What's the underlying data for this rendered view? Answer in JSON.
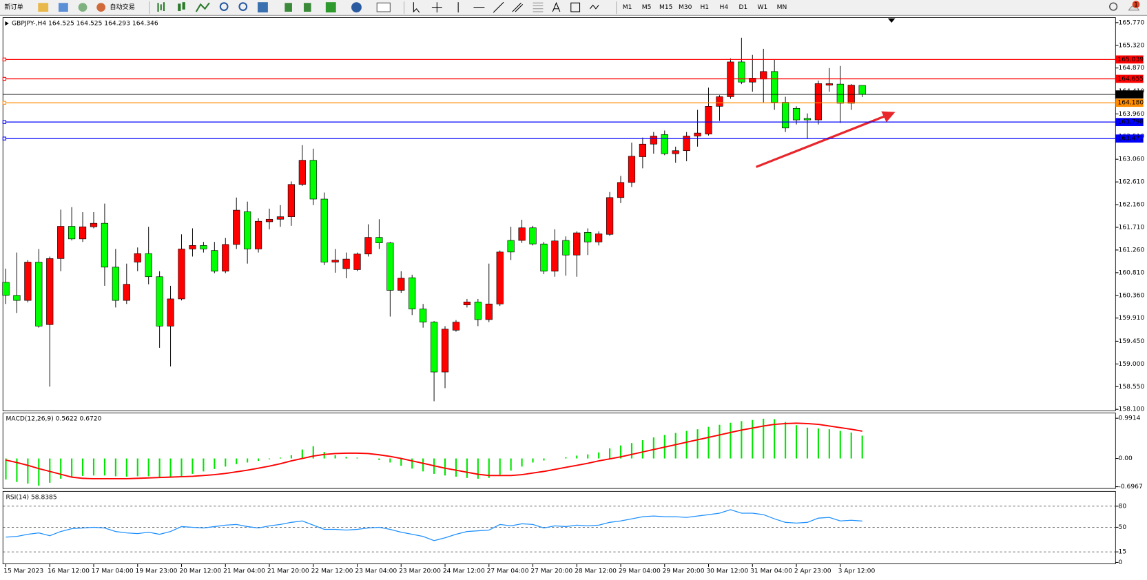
{
  "toolbar": {
    "buttons": [
      "新订单",
      "自动交易"
    ],
    "timeframes": [
      "M1",
      "M5",
      "M15",
      "M30",
      "H1",
      "H4",
      "D1",
      "W1",
      "MN"
    ],
    "notification_count": 1
  },
  "chart_data": [
    {
      "type": "candlestick",
      "title": "GBPJPY-,H4  164.525 164.525 164.293 164.346",
      "x": [
        "15 Mar 2023",
        null,
        null,
        null,
        "16 Mar 12:00",
        null,
        null,
        null,
        "17 Mar 04:00",
        null,
        null,
        null,
        "19 Mar 23:00",
        null,
        null,
        null,
        "20 Mar 12:00",
        null,
        null,
        null,
        "21 Mar 04:00",
        null,
        null,
        null,
        "21 Mar 20:00",
        null,
        null,
        null,
        "22 Mar 12:00",
        null,
        null,
        null,
        "23 Mar 04:00",
        null,
        null,
        null,
        "23 Mar 20:00",
        null,
        null,
        null,
        "24 Mar 12:00",
        null,
        null,
        null,
        "27 Mar 04:00",
        null,
        null,
        null,
        "27 Mar 20:00",
        null,
        null,
        null,
        "28 Mar 12:00",
        null,
        null,
        null,
        "29 Mar 04:00",
        null,
        null,
        null,
        "29 Mar 20:00",
        null,
        null,
        null,
        "30 Mar 12:00",
        null,
        null,
        null,
        "31 Mar 04:00",
        null,
        null,
        null,
        "2 Apr 23:00",
        null,
        null,
        null,
        "3 Apr 12:00",
        null,
        null
      ],
      "open": [
        160.62,
        160.36,
        160.26,
        161.02,
        159.78,
        161.09,
        161.73,
        161.48,
        161.72,
        161.79,
        160.92,
        160.26,
        161.02,
        161.19,
        160.73,
        159.75,
        160.29,
        161.28,
        161.35,
        161.25,
        160.84,
        161.37,
        162.02,
        161.28,
        161.82,
        161.87,
        161.92,
        162.56,
        163.04,
        162.27,
        161.02,
        160.89,
        160.87,
        161.18,
        161.51,
        161.4,
        160.46,
        160.71,
        160.09,
        159.83,
        158.84,
        159.67,
        160.17,
        160.23,
        159.88,
        160.19,
        161.45,
        161.45,
        161.7,
        161.38,
        160.84,
        161.45,
        161.16,
        161.61,
        161.42,
        161.57,
        162.3,
        162.6,
        163.11,
        163.36,
        163.55,
        163.17,
        163.23,
        163.52,
        163.56,
        164.11,
        164.3,
        164.99,
        164.59,
        164.65,
        164.8,
        164.19,
        164.07,
        163.87,
        163.84,
        164.53,
        164.55,
        164.17,
        164.525
      ],
      "high": [
        160.89,
        161.21,
        161.06,
        161.28,
        161.13,
        162.06,
        162.11,
        162.01,
        162.01,
        162.18,
        161.28,
        160.99,
        161.31,
        161.72,
        160.84,
        160.55,
        161.57,
        161.69,
        161.42,
        161.42,
        161.5,
        162.3,
        162.22,
        161.89,
        162.08,
        162.15,
        162.62,
        163.34,
        163.27,
        162.4,
        161.28,
        161.21,
        161.21,
        161.77,
        161.87,
        161.42,
        160.84,
        160.77,
        160.19,
        159.85,
        159.75,
        159.87,
        160.29,
        160.29,
        160.99,
        161.25,
        161.72,
        161.86,
        161.74,
        161.42,
        161.67,
        161.53,
        161.63,
        161.69,
        161.63,
        162.41,
        162.73,
        163.39,
        163.49,
        163.6,
        163.63,
        163.31,
        163.6,
        164.04,
        164.48,
        164.33,
        165.06,
        165.47,
        165.13,
        165.25,
        165.03,
        164.3,
        164.11,
        163.97,
        164.62,
        164.87,
        164.91,
        164.55,
        164.525
      ],
      "low": [
        160.19,
        160.01,
        160.22,
        159.72,
        158.55,
        160.84,
        161.45,
        161.42,
        161.69,
        160.55,
        160.12,
        160.19,
        160.84,
        160.58,
        159.32,
        158.95,
        160.26,
        161.13,
        161.21,
        160.8,
        160.8,
        161.28,
        160.99,
        161.21,
        161.67,
        161.72,
        161.74,
        162.53,
        162.15,
        160.96,
        160.81,
        160.7,
        160.84,
        161.13,
        161.28,
        159.94,
        160.41,
        159.97,
        159.72,
        158.26,
        158.52,
        159.64,
        160.12,
        159.75,
        159.83,
        160.15,
        161.06,
        161.4,
        161.35,
        160.78,
        160.73,
        160.75,
        160.73,
        161.16,
        161.35,
        161.54,
        162.19,
        162.51,
        162.88,
        163.17,
        163.14,
        162.99,
        163.02,
        163.31,
        163.53,
        163.82,
        164.26,
        164.55,
        164.4,
        164.19,
        164.04,
        163.6,
        163.75,
        163.46,
        163.75,
        164.4,
        163.78,
        164.04,
        164.293
      ],
      "close": [
        160.36,
        160.26,
        161.02,
        159.75,
        161.09,
        161.73,
        161.48,
        161.72,
        161.79,
        160.92,
        160.26,
        160.58,
        161.19,
        160.73,
        159.75,
        160.29,
        161.28,
        161.35,
        161.28,
        160.84,
        161.37,
        162.05,
        161.28,
        161.83,
        161.87,
        161.92,
        162.56,
        163.04,
        162.27,
        161.02,
        161.06,
        161.08,
        161.18,
        161.51,
        161.4,
        160.46,
        160.7,
        160.09,
        159.83,
        158.84,
        159.69,
        159.83,
        160.23,
        159.88,
        160.19,
        161.22,
        161.22,
        161.7,
        161.38,
        160.84,
        161.44,
        161.16,
        161.6,
        161.42,
        161.58,
        162.3,
        162.6,
        163.12,
        163.36,
        163.52,
        163.17,
        163.23,
        163.52,
        163.58,
        164.11,
        164.3,
        164.99,
        164.59,
        164.67,
        164.8,
        164.19,
        163.68,
        163.84,
        163.84,
        164.56,
        164.56,
        164.17,
        164.53,
        164.346
      ],
      "up_color": "#ff0000",
      "down_color": "#00ff00",
      "grid": false,
      "ylim": [
        158.07,
        165.87
      ],
      "yticks": [
        {
          "value": 165.77,
          "label": "165.770"
        },
        {
          "value": 165.32,
          "label": "165.320"
        },
        {
          "value": 164.87,
          "label": "164.870"
        },
        {
          "value": 164.41,
          "label": "164.410"
        },
        {
          "value": 163.96,
          "label": "163.960"
        },
        {
          "value": 163.51,
          "label": "163.510"
        },
        {
          "value": 163.06,
          "label": "163.060"
        },
        {
          "value": 162.61,
          "label": "162.610"
        },
        {
          "value": 162.16,
          "label": "162.160"
        },
        {
          "value": 161.71,
          "label": "161.710"
        },
        {
          "value": 161.26,
          "label": "161.260"
        },
        {
          "value": 160.81,
          "label": "160.810"
        },
        {
          "value": 160.36,
          "label": "160.360"
        },
        {
          "value": 159.91,
          "label": "159.910"
        },
        {
          "value": 159.45,
          "label": "159.450"
        },
        {
          "value": 159.0,
          "label": "159.000"
        },
        {
          "value": 158.55,
          "label": "158.550"
        },
        {
          "value": 158.1,
          "label": "158.100"
        }
      ],
      "levels": [
        {
          "value": 165.039,
          "color": "#ff0000"
        },
        {
          "value": 164.655,
          "color": "#ff0000"
        },
        {
          "value": 164.18,
          "label": "164.180",
          "color": "#ff8c00"
        },
        {
          "value": 163.798,
          "color": "#0000ff"
        },
        {
          "value": 163.471,
          "color": "#0000ff"
        }
      ],
      "bid": {
        "value": 164.346,
        "color": "#000000"
      }
    },
    {
      "type": "macd",
      "title": "MACD(12,26,9) 0.5622 0.6720",
      "grid": false,
      "ylim": [
        -0.74,
        1.12
      ],
      "yticks": [
        0.9914,
        {
          "value": 0,
          "label": "0.00"
        },
        -0.6967
      ],
      "series": [
        {
          "type": "bar",
          "color": "#00e600",
          "values": [
            -0.52,
            -0.58,
            -0.62,
            -0.67,
            -0.6,
            -0.5,
            -0.45,
            -0.43,
            -0.42,
            -0.42,
            -0.44,
            -0.45,
            -0.44,
            -0.44,
            -0.46,
            -0.47,
            -0.44,
            -0.38,
            -0.32,
            -0.26,
            -0.2,
            -0.14,
            -0.1,
            -0.06,
            -0.02,
            0.02,
            0.08,
            0.22,
            0.3,
            0.16,
            0.08,
            0.04,
            0.02,
            0.0,
            -0.04,
            -0.1,
            -0.18,
            -0.25,
            -0.32,
            -0.38,
            -0.42,
            -0.45,
            -0.48,
            -0.5,
            -0.48,
            -0.4,
            -0.3,
            -0.2,
            -0.1,
            -0.05,
            0.0,
            0.03,
            0.07,
            0.1,
            0.15,
            0.25,
            0.32,
            0.38,
            0.45,
            0.52,
            0.58,
            0.63,
            0.68,
            0.72,
            0.78,
            0.83,
            0.88,
            0.92,
            0.95,
            0.98,
            0.97,
            0.9,
            0.82,
            0.76,
            0.74,
            0.72,
            0.68,
            0.64,
            0.5622
          ]
        },
        {
          "type": "line",
          "color": "#ff0000",
          "values": [
            -0.04,
            -0.1,
            -0.17,
            -0.25,
            -0.32,
            -0.39,
            -0.46,
            -0.49,
            -0.5,
            -0.5,
            -0.5,
            -0.5,
            -0.49,
            -0.48,
            -0.47,
            -0.46,
            -0.45,
            -0.44,
            -0.42,
            -0.4,
            -0.37,
            -0.33,
            -0.29,
            -0.24,
            -0.19,
            -0.13,
            -0.06,
            0.0,
            0.06,
            0.1,
            0.12,
            0.13,
            0.13,
            0.12,
            0.09,
            0.05,
            0.0,
            -0.06,
            -0.12,
            -0.18,
            -0.24,
            -0.29,
            -0.34,
            -0.39,
            -0.42,
            -0.42,
            -0.42,
            -0.4,
            -0.36,
            -0.32,
            -0.27,
            -0.22,
            -0.17,
            -0.12,
            -0.06,
            -0.01,
            0.04,
            0.1,
            0.16,
            0.22,
            0.28,
            0.34,
            0.4,
            0.46,
            0.52,
            0.58,
            0.64,
            0.7,
            0.75,
            0.8,
            0.84,
            0.86,
            0.87,
            0.86,
            0.84,
            0.8,
            0.76,
            0.72,
            0.672
          ]
        }
      ]
    },
    {
      "type": "line",
      "title": "RSI(14) 58.8385",
      "grid": true,
      "ylim": [
        0,
        100
      ],
      "yticks": [
        0,
        15,
        50,
        80
      ],
      "series": [
        {
          "color": "#1e90ff",
          "values": [
            36,
            37,
            40,
            42,
            38,
            44,
            48,
            49,
            50,
            49,
            44,
            42,
            41,
            43,
            40,
            44,
            51,
            50,
            49,
            51,
            53,
            54,
            51,
            49,
            52,
            54,
            57,
            59,
            53,
            47,
            47,
            46,
            47,
            49,
            50,
            47,
            43,
            40,
            37,
            31,
            35,
            40,
            44,
            45,
            46,
            54,
            52,
            55,
            54,
            49,
            52,
            51,
            53,
            52,
            53,
            57,
            59,
            62,
            65,
            66,
            65,
            65,
            64,
            66,
            68,
            70,
            75,
            70,
            70,
            68,
            62,
            57,
            56,
            57,
            63,
            64,
            59,
            60,
            58.8385
          ]
        }
      ]
    }
  ]
}
